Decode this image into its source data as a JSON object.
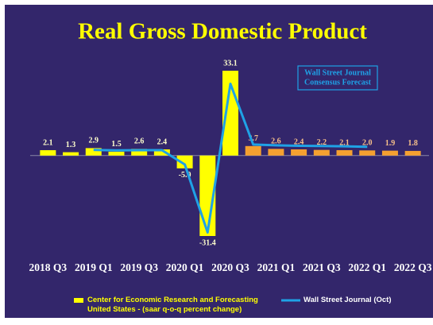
{
  "chart_data": {
    "type": "bar",
    "title": "Real Gross Domestic Product",
    "categories": [
      "2018 Q3",
      null,
      "2019 Q1",
      null,
      "2019 Q3",
      null,
      "2020 Q1",
      null,
      "2020 Q3",
      null,
      "2021 Q1",
      null,
      "2021 Q3",
      null,
      "2022 Q1",
      null,
      "2022 Q3"
    ],
    "series": [
      {
        "name": "Center for Economic Research and Forecasting United States - (saar q-o-q percent change)",
        "type": "bar",
        "color": "#ffff00",
        "colors": [
          "#ffff00",
          "#ffff00",
          "#ffff00",
          "#ffff00",
          "#ffff00",
          "#ffff00",
          "#ffff00",
          "#ffff00",
          "#ffff00",
          "#f5a030",
          "#f5a030",
          "#f5a030",
          "#f5a030",
          "#f5a030",
          "#f5a030",
          "#f5a030",
          "#f5a030"
        ],
        "values": [
          2.1,
          1.3,
          2.9,
          1.5,
          2.6,
          2.4,
          -5.0,
          -31.4,
          33.1,
          3.7,
          2.6,
          2.4,
          2.2,
          2.1,
          2.0,
          1.9,
          1.8
        ],
        "value_labels": [
          "2.1",
          "1.3",
          "2.9",
          "1.5",
          "2.6",
          "2.4",
          "-5.0",
          "-31.4",
          "33.1",
          "3.7",
          "2.6",
          "2.4",
          "2.2",
          "2.1",
          "2.0",
          "1.9",
          "1.8"
        ]
      },
      {
        "name": "Wall Street Journal (Oct)",
        "type": "line",
        "color": "#1fa2e6",
        "values": [
          null,
          null,
          2.2,
          2.0,
          2.1,
          2.1,
          -3.5,
          -30.0,
          28.0,
          4.3,
          4.0,
          3.8,
          3.7,
          3.6,
          3.4,
          null,
          null
        ]
      }
    ],
    "annotation": [
      "Wall Street Journal",
      "Consensus Forecast"
    ]
  }
}
